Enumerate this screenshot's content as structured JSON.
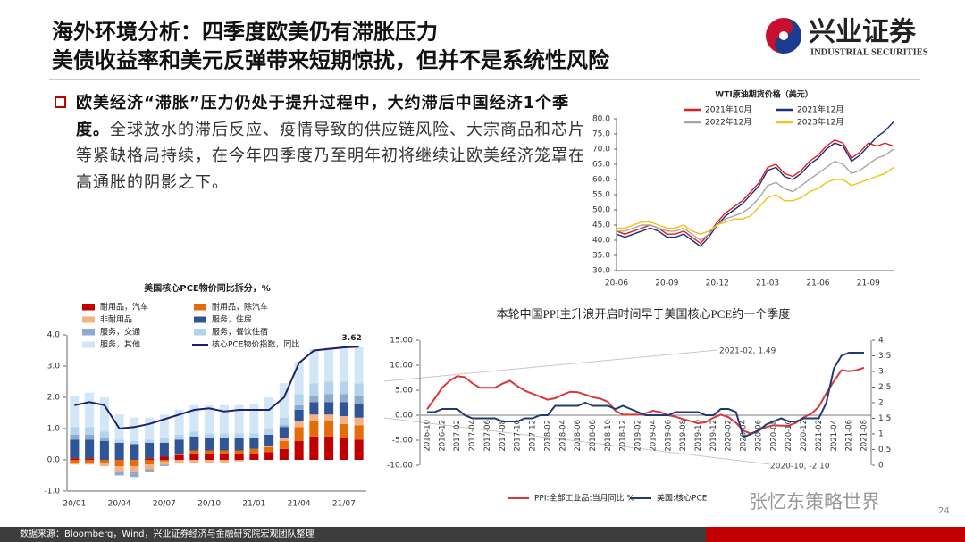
{
  "header": {
    "title_line1": "海外环境分析：四季度欧美仍有滞胀压力",
    "title_line2": "美债收益率和美元反弹带来短期惊扰，但并不是系统性风险",
    "logo_cn": "兴业证券",
    "logo_en": "INDUSTRIAL SECURITIES"
  },
  "bullet": {
    "bold": "欧美经济“滞胀”压力仍处于提升过程中，大约滞后中国经济1个季度。",
    "text": "全球放水的滞后反应、疫情导致的供应链风险、大宗商品和芯片等紧缺格局持续，在今年四季度乃至明年初将继续让欧美经济笼罩在高通胀的阴影之下。"
  },
  "chart_data": [
    {
      "type": "line",
      "title": "WTI原油期货价格（美元）",
      "categories": [
        "20-06",
        null,
        null,
        null,
        null,
        null,
        "20-09",
        null,
        null,
        null,
        null,
        null,
        "20-12",
        null,
        null,
        null,
        null,
        null,
        "21-03",
        null,
        null,
        null,
        null,
        null,
        "21-06",
        null,
        null,
        null,
        null,
        null,
        "21-09",
        null,
        null,
        null
      ],
      "series": [
        {
          "name": "2021年10月",
          "color": "#e02020",
          "values": [
            43,
            42,
            43,
            44,
            45,
            44,
            42,
            42,
            43,
            41,
            39,
            42,
            46,
            49,
            51,
            53,
            56,
            59,
            64,
            65,
            62,
            61,
            63,
            66,
            68,
            71,
            73,
            72,
            67,
            69,
            72,
            71,
            72,
            71
          ]
        },
        {
          "name": "2021年12月",
          "color": "#1f2d7a",
          "values": [
            42,
            41,
            42,
            43,
            44,
            43,
            41,
            41,
            42,
            40,
            38,
            41,
            45,
            48,
            50,
            52,
            55,
            58,
            63,
            64,
            61,
            60,
            62,
            65,
            67,
            70,
            72,
            71,
            66,
            68,
            71,
            74,
            76,
            79
          ]
        },
        {
          "name": "2022年12月",
          "color": "#a6a6a6",
          "values": [
            43,
            43,
            44,
            45,
            45,
            44,
            43,
            43,
            44,
            42,
            40,
            42,
            45,
            47,
            48,
            49,
            51,
            54,
            58,
            59,
            57,
            56,
            58,
            60,
            62,
            64,
            66,
            65,
            62,
            63,
            65,
            67,
            68,
            70
          ]
        },
        {
          "name": "2023年12月",
          "color": "#f2c314",
          "values": [
            44,
            44,
            45,
            46,
            46,
            45,
            44,
            44,
            45,
            43,
            42,
            43,
            45,
            46,
            47,
            47,
            48,
            51,
            54,
            55,
            53,
            53,
            54,
            56,
            57,
            59,
            60,
            60,
            58,
            59,
            60,
            61,
            62,
            64
          ]
        }
      ],
      "ylim": [
        30,
        80
      ],
      "yticks": [
        {
          "value": 30,
          "label": "30.0"
        },
        {
          "value": 35,
          "label": "35.0"
        },
        {
          "value": 40,
          "label": "40.0"
        },
        {
          "value": 45,
          "label": "45.0"
        },
        {
          "value": 50,
          "label": "50.0"
        },
        {
          "value": 55,
          "label": "55.0"
        },
        {
          "value": 60,
          "label": "60.0"
        },
        {
          "value": 65,
          "label": "65.0"
        },
        {
          "value": 70,
          "label": "70.0"
        },
        {
          "value": 75,
          "label": "75.0"
        },
        {
          "value": 80,
          "label": "80.0"
        }
      ]
    },
    {
      "type": "bar",
      "stacked": true,
      "title": "美国核心PCE物价同比拆分，%",
      "categories": [
        "20/01",
        null,
        null,
        "20/04",
        null,
        null,
        "20/07",
        null,
        null,
        "20/10",
        null,
        null,
        "21/01",
        null,
        null,
        "21/04",
        null,
        null,
        "21/07",
        null
      ],
      "series": [
        {
          "name": "耐用品，汽车",
          "color": "#c00000",
          "values": [
            0.05,
            0.05,
            0,
            0,
            0,
            0.05,
            0.1,
            0.15,
            0.2,
            0.2,
            0.2,
            0.2,
            0.2,
            0.25,
            0.35,
            0.6,
            0.75,
            0.75,
            0.7,
            0.65
          ]
        },
        {
          "name": "耐用品，除汽车",
          "color": "#e46c0a",
          "values": [
            -0.1,
            -0.1,
            -0.1,
            -0.2,
            -0.2,
            -0.15,
            -0.05,
            0.05,
            0.1,
            0.1,
            0.1,
            0.1,
            0.15,
            0.15,
            0.25,
            0.45,
            0.5,
            0.5,
            0.45,
            0.45
          ]
        },
        {
          "name": "非耐用品",
          "color": "#f4b183",
          "values": [
            -0.05,
            -0.05,
            -0.1,
            -0.2,
            -0.2,
            -0.15,
            -0.1,
            -0.1,
            -0.1,
            -0.1,
            -0.1,
            -0.05,
            0,
            0.05,
            0.1,
            0.2,
            0.2,
            0.2,
            0.25,
            0.25
          ]
        },
        {
          "name": "服务，住房",
          "color": "#2f5597",
          "values": [
            0.6,
            0.6,
            0.6,
            0.55,
            0.5,
            0.5,
            0.45,
            0.45,
            0.45,
            0.4,
            0.4,
            0.4,
            0.35,
            0.35,
            0.35,
            0.35,
            0.4,
            0.4,
            0.45,
            0.45
          ]
        },
        {
          "name": "服务，交通",
          "color": "#8fa9d0",
          "values": [
            0.15,
            0.15,
            0.1,
            -0.1,
            -0.15,
            -0.1,
            -0.05,
            0,
            0,
            0,
            0,
            0,
            0,
            0,
            0.05,
            0.15,
            0.2,
            0.25,
            0.25,
            0.25
          ]
        },
        {
          "name": "服务，餐饮住宿",
          "color": "#b4d4ee",
          "values": [
            0.25,
            0.25,
            0.2,
            0.1,
            0.1,
            0.1,
            0.15,
            0.15,
            0.15,
            0.15,
            0.15,
            0.15,
            0.15,
            0.2,
            0.25,
            0.35,
            0.4,
            0.4,
            0.4,
            0.4
          ]
        },
        {
          "name": "服务，其他",
          "color": "#d3e6f6",
          "values": [
            1.0,
            1.1,
            1.1,
            0.8,
            0.75,
            0.7,
            0.75,
            0.8,
            0.85,
            0.9,
            0.9,
            0.9,
            0.95,
            1.0,
            1.1,
            1.05,
            1.1,
            1.1,
            1.15,
            1.15
          ]
        },
        {
          "name": "核心PCE物价指数，同比",
          "type": "line",
          "color": "#1f1f6e",
          "values": [
            1.75,
            1.85,
            1.75,
            1.0,
            1.05,
            1.15,
            1.3,
            1.45,
            1.6,
            1.65,
            1.55,
            1.6,
            1.6,
            1.6,
            2.0,
            3.1,
            3.5,
            3.55,
            3.6,
            3.62
          ],
          "value_labels": [
            null,
            null,
            null,
            null,
            null,
            null,
            null,
            null,
            null,
            null,
            null,
            null,
            null,
            null,
            null,
            null,
            null,
            null,
            null,
            "3.62"
          ]
        }
      ],
      "ylim": [
        -1,
        4
      ],
      "yticks": [
        {
          "value": -1,
          "label": "-1.0"
        },
        {
          "value": 0,
          "label": "0.0"
        },
        {
          "value": 1,
          "label": "1.0"
        },
        {
          "value": 2,
          "label": "2.0"
        },
        {
          "value": 3,
          "label": "3.0"
        },
        {
          "value": 4,
          "label": "4.0"
        }
      ]
    },
    {
      "type": "line",
      "title": "本轮中国PPI主升浪开启时间早于美国核心PCE约一个季度",
      "categories": [
        "2016-10",
        null,
        "2016-12",
        null,
        "2017-02",
        null,
        "2017-04",
        null,
        "2017-06",
        null,
        "2017-08",
        null,
        "2017-10",
        null,
        "2017-12",
        null,
        "2018-02",
        null,
        "2018-04",
        null,
        "2018-06",
        null,
        "2018-08",
        null,
        "2018-10",
        null,
        "2018-12",
        null,
        "2019-02",
        null,
        "2019-04",
        null,
        "2019-06",
        null,
        "2019-08",
        null,
        "2019-10",
        null,
        "2019-12",
        null,
        "2020-02",
        null,
        "2020-04",
        null,
        "2020-06",
        null,
        "2020-08",
        null,
        "2020-10",
        null,
        "2020-12",
        null,
        "2021-02",
        null,
        "2021-04",
        null,
        "2021-06",
        null,
        "2021-08"
      ],
      "series": [
        {
          "name": "PPI:全部工业品:当月同比 %",
          "color": "#d9383a",
          "values": [
            1.2,
            3.3,
            5.5,
            6.9,
            7.8,
            7.6,
            6.4,
            5.5,
            5.5,
            5.5,
            6.3,
            6.9,
            5.8,
            4.9,
            4.3,
            3.7,
            3.1,
            3.4,
            4.1,
            4.7,
            4.6,
            4.1,
            3.6,
            3.3,
            2.7,
            0.9,
            0.1,
            0.1,
            0.1,
            0.4,
            0.9,
            0.6,
            0.0,
            -0.3,
            -0.8,
            -1.2,
            -1.6,
            -1.4,
            -0.5,
            0.1,
            -0.4,
            -1.5,
            -3.1,
            -3.7,
            -3.0,
            -2.4,
            -2.0,
            -2.1,
            -2.1,
            -1.5,
            -0.4,
            0.3,
            1.7,
            4.4,
            6.8,
            9.0,
            8.8,
            9.0,
            9.5
          ]
        },
        {
          "name": "美国:核心PCE",
          "color": "#1f3b73",
          "axis": "y2",
          "values": [
            1.7,
            1.7,
            1.8,
            1.8,
            1.8,
            1.6,
            1.5,
            1.5,
            1.5,
            1.5,
            1.4,
            1.4,
            1.4,
            1.5,
            1.5,
            1.6,
            1.6,
            1.9,
            1.9,
            1.9,
            1.9,
            2.0,
            1.9,
            1.9,
            1.9,
            1.8,
            1.9,
            1.8,
            1.7,
            1.6,
            1.6,
            1.6,
            1.6,
            1.7,
            1.7,
            1.7,
            1.7,
            1.6,
            1.6,
            1.8,
            1.8,
            1.7,
            0.9,
            1.0,
            1.1,
            1.3,
            1.4,
            1.5,
            1.4,
            1.4,
            1.5,
            1.5,
            1.5,
            2.0,
            3.1,
            3.5,
            3.6,
            3.6,
            3.6
          ]
        }
      ],
      "ylim": [
        -10,
        15
      ],
      "yticks": [
        {
          "value": -10,
          "label": "-10.00"
        },
        {
          "value": -5,
          "label": "-5.00"
        },
        {
          "value": 0,
          "label": "0.00"
        },
        {
          "value": 5,
          "label": "5.00"
        },
        {
          "value": 10,
          "label": "10.00"
        },
        {
          "value": 15,
          "label": "15.00"
        }
      ],
      "y2lim": [
        0,
        4
      ],
      "y2ticks": [
        0,
        0.5,
        1,
        1.5,
        2,
        2.5,
        3,
        3.5,
        4
      ],
      "annotations": [
        "2021-02, 1.49",
        "2020-10, -2.10"
      ]
    }
  ],
  "footer": {
    "source": "数据来源：Bloomberg，Wind，兴业证券经济与金融研究院宏观团队整理",
    "page": "24"
  },
  "watermark": "张忆东策略世界"
}
